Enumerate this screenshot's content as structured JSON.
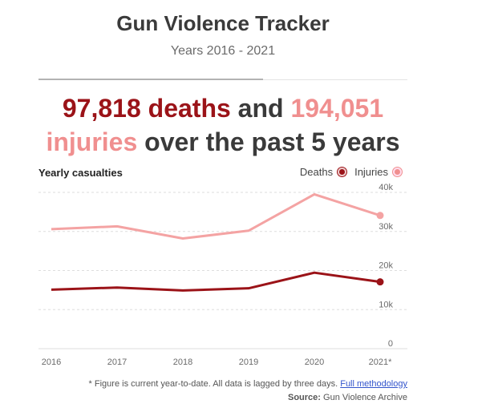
{
  "header": {
    "title": "Gun Violence Tracker",
    "subtitle": "Years 2016 - 2021"
  },
  "headline": {
    "deaths_value": "97,818 deaths",
    "connector": "and",
    "injuries_value": "194,051",
    "injuries_word": "injuries",
    "suffix": "over the past 5 years"
  },
  "legend": {
    "deaths": "Deaths",
    "injuries": "Injuries"
  },
  "footer": {
    "note": "* Figure is current year-to-date. All data is lagged by three days.",
    "link": "Full methodology",
    "source_label": "Source:",
    "source": "Gun Violence Archive"
  },
  "colors": {
    "deaths": "#9b1318",
    "injuries": "#f4a3a3"
  },
  "chart_data": {
    "type": "line",
    "title": "Yearly casualties",
    "categories": [
      "2016",
      "2017",
      "2018",
      "2019",
      "2020",
      "2021*"
    ],
    "series": [
      {
        "name": "Deaths",
        "values": [
          15100,
          15650,
          14900,
          15450,
          19450,
          17100
        ]
      },
      {
        "name": "Injuries",
        "values": [
          30600,
          31300,
          28200,
          30200,
          39500,
          34100
        ]
      }
    ],
    "ylim": [
      0,
      40000
    ],
    "yticks": [
      "0",
      "10k",
      "20k",
      "30k",
      "40k"
    ],
    "ytick_values": [
      0,
      10000,
      20000,
      30000,
      40000
    ],
    "grid": true,
    "legend_position": "top-right"
  }
}
